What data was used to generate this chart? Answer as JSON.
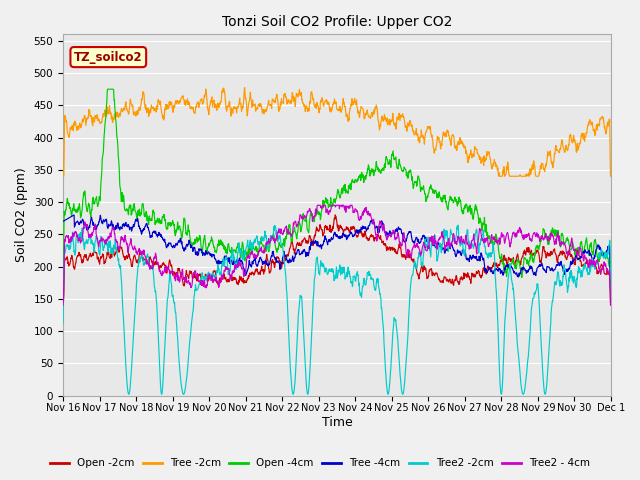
{
  "title": "Tonzi Soil CO2 Profile: Upper CO2",
  "xlabel": "Time",
  "ylabel": "Soil CO2 (ppm)",
  "ylim": [
    0,
    560
  ],
  "yticks": [
    0,
    50,
    100,
    150,
    200,
    250,
    300,
    350,
    400,
    450,
    500,
    550
  ],
  "fig_bg": "#f0f0f0",
  "plot_bg": "#e8e8e8",
  "grid_color": "#ffffff",
  "legend_label": "TZ_soilco2",
  "legend_box_bg": "#ffffcc",
  "legend_box_edge": "#cc0000",
  "legend_text_color": "#990000",
  "series": {
    "Open_2cm": {
      "color": "#cc0000",
      "label": "Open -2cm"
    },
    "Tree_2cm": {
      "color": "#ff9900",
      "label": "Tree -2cm"
    },
    "Open_4cm": {
      "color": "#00cc00",
      "label": "Open -4cm"
    },
    "Tree_4cm": {
      "color": "#0000cc",
      "label": "Tree -4cm"
    },
    "Tree2_2cm": {
      "color": "#00cccc",
      "label": "Tree2 -2cm"
    },
    "Tree2_4cm": {
      "color": "#cc00cc",
      "label": "Tree2 - 4cm"
    }
  },
  "xstart": 16,
  "xend": 31,
  "xtick_labels": [
    "Nov 16",
    "Nov 17",
    "Nov 18",
    "Nov 19",
    "Nov 20",
    "Nov 21",
    "Nov 22",
    "Nov 23",
    "Nov 24",
    "Nov 25",
    "Nov 26",
    "Nov 27",
    "Nov 28",
    "Nov 29",
    "Nov 30",
    "Dec 1"
  ],
  "xtick_positions": [
    16,
    17,
    18,
    19,
    20,
    21,
    22,
    23,
    24,
    25,
    26,
    27,
    28,
    29,
    30,
    31
  ]
}
